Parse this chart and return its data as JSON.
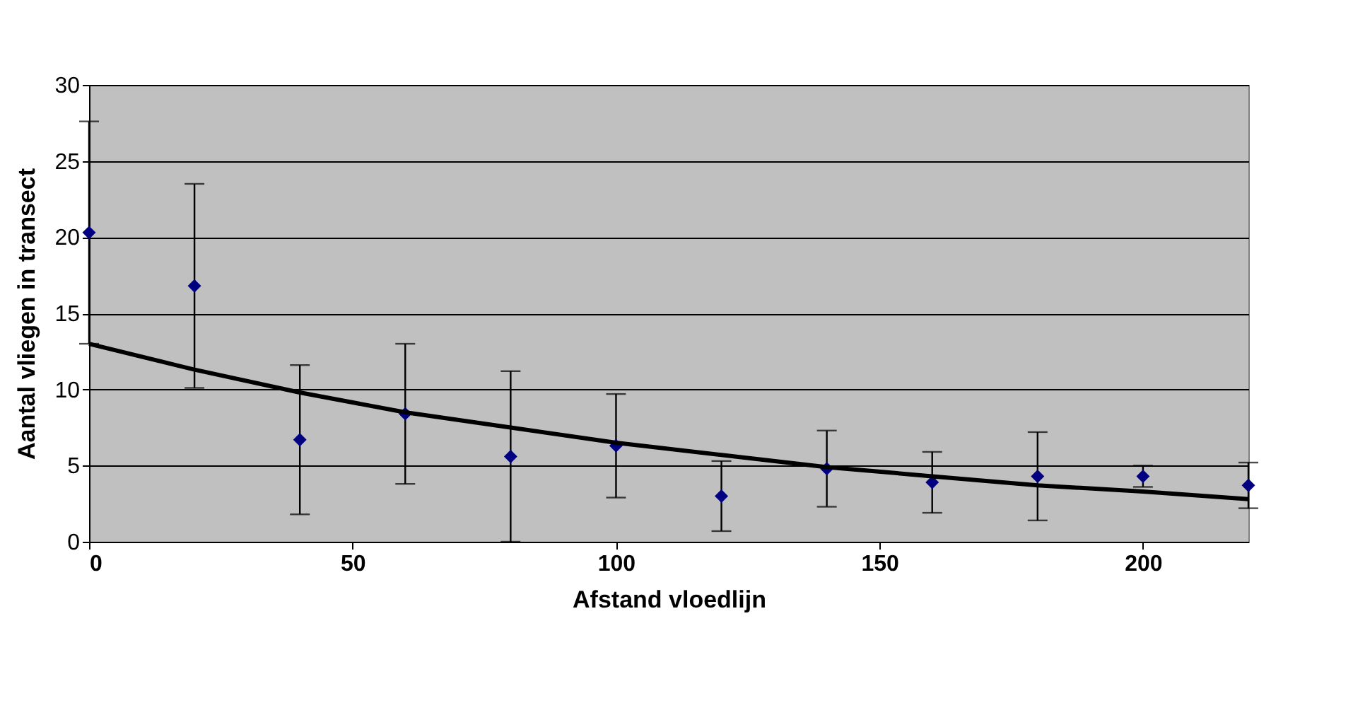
{
  "chart_data": {
    "type": "scatter",
    "xlabel": "Afstand vloedlijn",
    "ylabel": "Aantal vliegen in transect",
    "x": [
      0,
      20,
      40,
      60,
      80,
      100,
      120,
      140,
      160,
      180,
      200,
      220
    ],
    "xlim": [
      0,
      220
    ],
    "xticks": [
      0,
      50,
      100,
      150,
      200
    ],
    "ylim": [
      0,
      30
    ],
    "yticks": [
      0,
      5,
      10,
      15,
      20,
      25,
      30
    ],
    "grid": "y",
    "series": [
      {
        "color": "#000080",
        "marker": "diamond",
        "values": [
          20.3,
          16.8,
          6.7,
          8.4,
          5.6,
          6.3,
          3.0,
          4.8,
          3.9,
          4.3,
          4.3,
          3.7
        ],
        "errors": [
          7.3,
          6.7,
          4.9,
          4.6,
          5.6,
          3.4,
          2.3,
          2.5,
          2.0,
          2.9,
          0.7,
          1.5
        ]
      },
      {
        "type": "line",
        "color": "#000000",
        "marker": "none",
        "line_style": "solid",
        "x": [
          0,
          20,
          40,
          60,
          80,
          100,
          120,
          140,
          160,
          180,
          200,
          220
        ],
        "values": [
          13.0,
          11.3,
          9.8,
          8.5,
          7.5,
          6.5,
          5.7,
          4.9,
          4.3,
          3.7,
          3.3,
          2.8
        ]
      }
    ]
  }
}
